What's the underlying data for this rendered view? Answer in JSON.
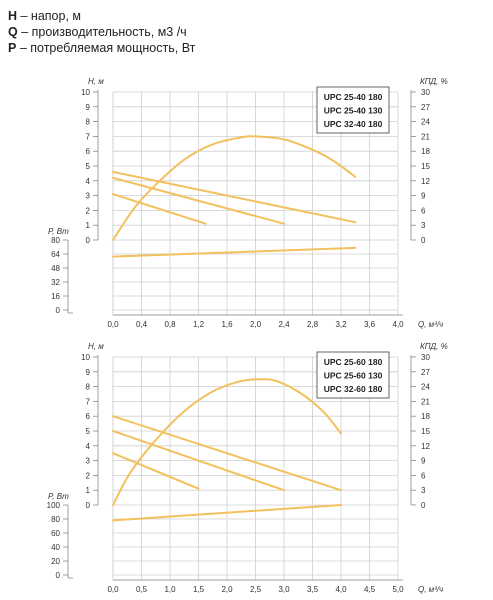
{
  "legend": [
    {
      "symbol": "H",
      "text": " – напор, м"
    },
    {
      "symbol": "Q",
      "text": " – производительность, м3 /ч"
    },
    {
      "symbol": "P",
      "text": " – потребляемая мощность, Вт"
    }
  ],
  "colors": {
    "curve": "#f2c15e",
    "grid": "#cfcfcf",
    "axis": "#888888",
    "text": "#333333"
  },
  "chart_data": [
    {
      "type": "line",
      "models": [
        "UPC 25-40 180",
        "UPC 25-40 130",
        "UPC 32-40 180"
      ],
      "ylabel_h": "H, м",
      "ylabel_p": "P, Вт",
      "ylabel_eff": "КПД, %",
      "xlabel": "Q, м³/ч",
      "x_ticks": [
        "0,0",
        "0,4",
        "0,8",
        "1,2",
        "1,6",
        "2,0",
        "2,4",
        "2,8",
        "3,2",
        "3,6",
        "4,0"
      ],
      "h_ticks": [
        "10",
        "9",
        "8",
        "7",
        "6",
        "5",
        "4",
        "3",
        "2",
        "1",
        "0"
      ],
      "eff_ticks": [
        "30",
        "27",
        "24",
        "21",
        "18",
        "15",
        "12",
        "9",
        "6",
        "3",
        "0"
      ],
      "p_ticks": [
        "80",
        "64",
        "48",
        "32",
        "16",
        "0"
      ],
      "xlim": [
        0,
        4.0
      ],
      "hlim": [
        0,
        10
      ],
      "efflim": [
        0,
        30
      ],
      "plim": [
        0,
        80
      ],
      "series": [
        {
          "kind": "head",
          "x": [
            0,
            1.3
          ],
          "y": [
            3.1,
            1.1
          ]
        },
        {
          "kind": "head",
          "x": [
            0,
            2.4
          ],
          "y": [
            4.2,
            1.1
          ]
        },
        {
          "kind": "head",
          "x": [
            0,
            3.4
          ],
          "y": [
            4.6,
            1.2
          ]
        },
        {
          "kind": "efficiency",
          "x": [
            0,
            0.3,
            0.6,
            1.0,
            1.4,
            1.8,
            2.0,
            2.4,
            2.8,
            3.1,
            3.4
          ],
          "y": [
            0,
            6.5,
            11.2,
            16.3,
            19.4,
            20.8,
            21.0,
            20.4,
            18.3,
            16.0,
            12.8
          ]
        },
        {
          "kind": "power",
          "x": [
            0,
            3.4
          ],
          "y": [
            61,
            71
          ]
        }
      ]
    },
    {
      "type": "line",
      "models": [
        "UPC 25-60 180",
        "UPC 25-60 130",
        "UPC 32-60 180"
      ],
      "ylabel_h": "H, м",
      "ylabel_p": "P, Вт",
      "ylabel_eff": "КПД, %",
      "xlabel": "Q, м³/ч",
      "x_ticks": [
        "0,0",
        "0,5",
        "1,0",
        "1,5",
        "2,0",
        "2,5",
        "3,0",
        "3,5",
        "4,0",
        "4,5",
        "5,0"
      ],
      "h_ticks": [
        "10",
        "9",
        "8",
        "7",
        "6",
        "5",
        "4",
        "3",
        "2",
        "1",
        "0"
      ],
      "eff_ticks": [
        "30",
        "27",
        "24",
        "21",
        "18",
        "15",
        "12",
        "9",
        "6",
        "3",
        "0"
      ],
      "p_ticks": [
        "100",
        "80",
        "60",
        "40",
        "20",
        "0"
      ],
      "xlim": [
        0,
        5.0
      ],
      "hlim": [
        0,
        10
      ],
      "efflim": [
        0,
        30
      ],
      "plim": [
        0,
        100
      ],
      "series": [
        {
          "kind": "head",
          "x": [
            0,
            1.5
          ],
          "y": [
            3.5,
            1.1
          ]
        },
        {
          "kind": "head",
          "x": [
            0,
            3.0
          ],
          "y": [
            5.0,
            1.0
          ]
        },
        {
          "kind": "head",
          "x": [
            0,
            4.0
          ],
          "y": [
            6.0,
            1.0
          ]
        },
        {
          "kind": "efficiency",
          "x": [
            0,
            0.3,
            0.7,
            1.2,
            1.7,
            2.2,
            2.6,
            2.9,
            3.3,
            3.7,
            4.0
          ],
          "y": [
            0,
            6.5,
            12.5,
            18.5,
            22.7,
            25.0,
            25.5,
            25.0,
            22.6,
            18.8,
            14.5
          ]
        },
        {
          "kind": "power",
          "x": [
            0,
            4.0
          ],
          "y": [
            78,
            100
          ]
        }
      ]
    }
  ]
}
